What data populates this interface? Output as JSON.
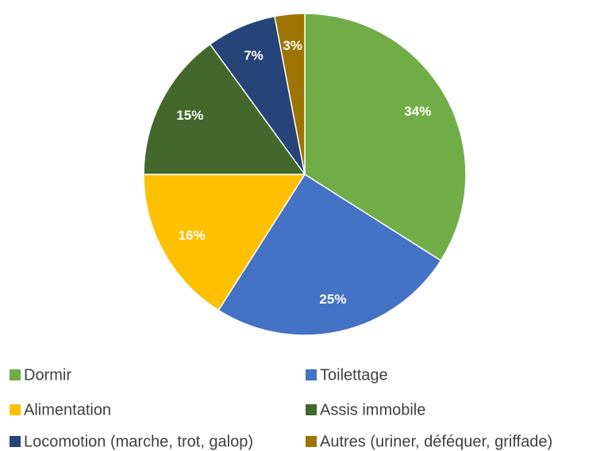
{
  "chart_data": {
    "type": "pie",
    "categories": [
      "Dormir",
      "Toilettage",
      "Alimentation",
      "Assis immobile",
      "Locomotion (marche, trot, galop)",
      "Autres (uriner, déféquer, griffade)"
    ],
    "values": [
      34,
      25,
      16,
      15,
      7,
      3
    ],
    "value_labels": [
      "34%",
      "25%",
      "16%",
      "15%",
      "7%",
      "3%"
    ],
    "colors": [
      "#70ad47",
      "#4472c4",
      "#ffc000",
      "#43682b",
      "#264478",
      "#9e7400"
    ],
    "legend": "bottom"
  }
}
